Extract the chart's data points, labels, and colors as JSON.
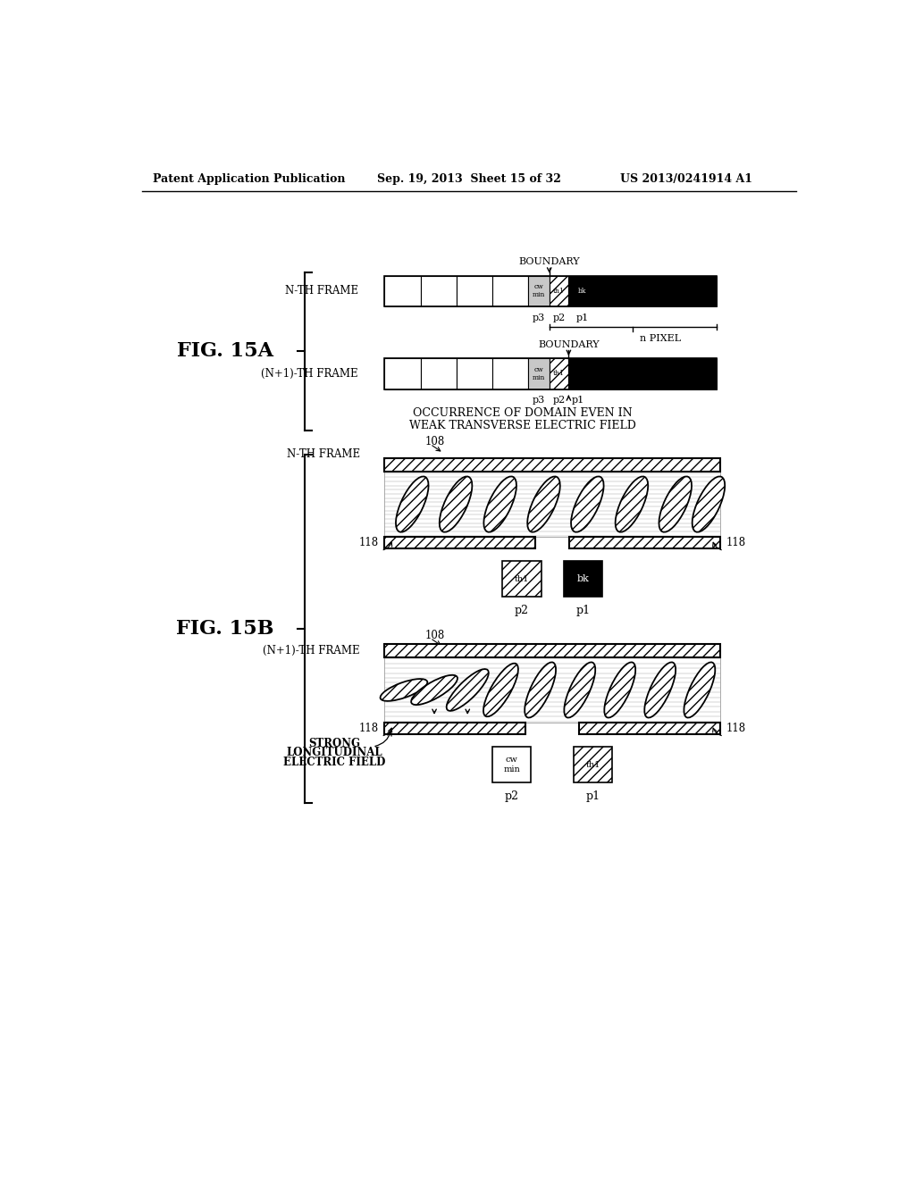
{
  "header_left": "Patent Application Publication",
  "header_mid": "Sep. 19, 2013  Sheet 15 of 32",
  "header_right": "US 2013/0241914 A1",
  "fig15a_label": "FIG. 15A",
  "fig15b_label": "FIG. 15B",
  "background": "#ffffff"
}
